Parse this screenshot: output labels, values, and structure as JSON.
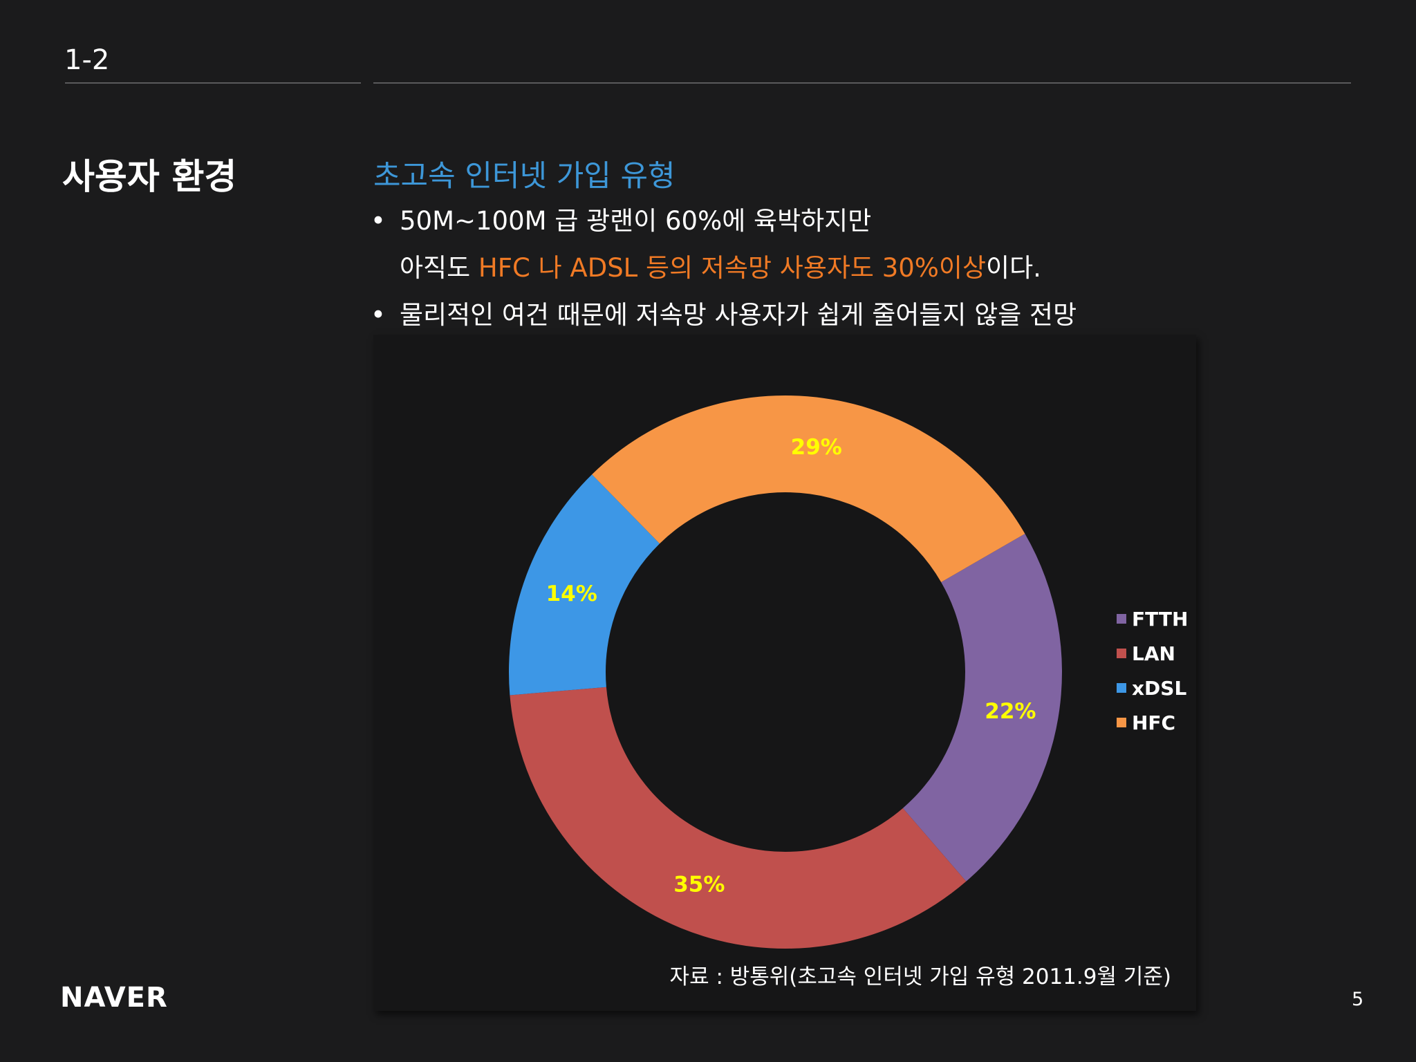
{
  "header": {
    "section_number": "1-2"
  },
  "page_title": "사용자 환경",
  "content": {
    "subtitle": "초고속 인터넷 가입 유형",
    "bullet_marker": "•",
    "bullet1_line1": "50M~100M 급 광랜이 60%에 육박하지만",
    "bullet1_line2_prefix": "아직도 ",
    "bullet1_line2_highlight": "HFC 나 ADSL 등의 저속망 사용자도 30%이상",
    "bullet1_line2_suffix": "이다.",
    "bullet2": "물리적인 여건 때문에 저속망 사용자가 쉽게 줄어들지 않을 전망",
    "highlight_color": "#f07a25"
  },
  "chart_source": "자료 : 방통위(초고속 인터넷 가입 유형 2011.9월 기준)",
  "footer": {
    "logo": "NAVER",
    "page_number": "5"
  },
  "chart_data": {
    "type": "pie",
    "subtype": "donut",
    "categories": [
      "FTTH",
      "LAN",
      "xDSL",
      "HFC"
    ],
    "values": [
      22,
      35,
      14,
      29
    ],
    "unit": "%",
    "labels": [
      "22%",
      "35%",
      "14%",
      "29%"
    ],
    "colors": [
      "#8064a2",
      "#c0504d",
      "#3d97e6",
      "#f79646"
    ],
    "label_color": "#ffff00",
    "legend_position": "right"
  }
}
